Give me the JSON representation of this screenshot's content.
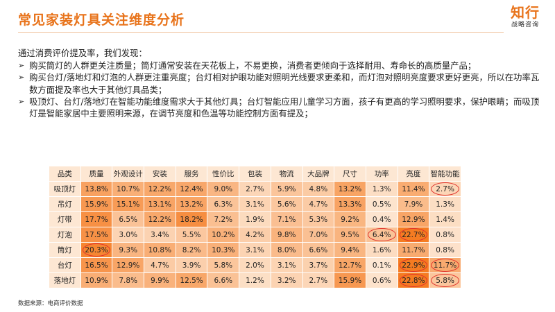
{
  "header": {
    "title": "常见家装灯具关注维度分析",
    "logo_main": "知行",
    "logo_sub": "战略咨询"
  },
  "intro": "通过消费评价提及率，我们发现：",
  "bullets": [
    "购买筒灯的人群更关注质量；筒灯通常安装在天花板上，不易更换，消费者更倾向于选择耐用、寿命长的高质量产品；",
    "购买台灯/落地灯和灯泡的人群更注重亮度；台灯相对护眼功能对照明光线要求更柔和，而灯泡对照明亮度要求更好更亮，所以在功率瓦数方面提及率也大于其他灯具品类；",
    "吸顶灯、台灯/落地灯在智能功能维度需求大于其他灯具；台灯智能应用儿童学习方面，孩子有更高的学习照明要求，保护眼睛；而吸顶灯是智能家居中主要照明来源，在调节亮度和色温等功能控制方面有提及；"
  ],
  "table": {
    "headers": [
      "品类",
      "质量",
      "外观设计",
      "安装",
      "服务",
      "性价比",
      "包装",
      "物流",
      "大品牌",
      "尺寸",
      "功率",
      "亮度",
      "智能功能"
    ],
    "rows": [
      {
        "label": "吸顶灯",
        "cells": [
          "13.8%",
          "10.7%",
          "12.2%",
          "12.4%",
          "9.0%",
          "2.7%",
          "5.9%",
          "4.8%",
          "13.2%",
          "1.3%",
          "11.4%",
          "2.7%"
        ]
      },
      {
        "label": "吊灯",
        "cells": [
          "15.9%",
          "15.1%",
          "13.1%",
          "13.2%",
          "6.3%",
          "3.1%",
          "5.6%",
          "4.7%",
          "13.3%",
          "0.5%",
          "7.9%",
          "1.3%"
        ]
      },
      {
        "label": "灯带",
        "cells": [
          "17.7%",
          "6.5%",
          "12.2%",
          "18.2%",
          "7.2%",
          "1.9%",
          "7.1%",
          "5.3%",
          "9.2%",
          "0.4%",
          "12.9%",
          "1.4%"
        ]
      },
      {
        "label": "灯泡",
        "cells": [
          "17.5%",
          "3.0%",
          "3.4%",
          "5.5%",
          "10.2%",
          "4.2%",
          "9.8%",
          "7.0%",
          "9.5%",
          "6.4%",
          "22.7%",
          "0.8%"
        ]
      },
      {
        "label": "筒灯",
        "cells": [
          "20.3%",
          "9.3%",
          "10.8%",
          "8.2%",
          "10.3%",
          "3.1%",
          "8.0%",
          "6.6%",
          "9.4%",
          "1.6%",
          "11.7%",
          "0.8%"
        ]
      },
      {
        "label": "台灯",
        "cells": [
          "16.5%",
          "12.9%",
          "4.7%",
          "3.9%",
          "5.8%",
          "2.0%",
          "3.1%",
          "3.7%",
          "12.7%",
          "0.1%",
          "22.9%",
          "11.7%"
        ]
      },
      {
        "label": "落地灯",
        "cells": [
          "10.9%",
          "7.8%",
          "9.9%",
          "12.5%",
          "6.6%",
          "1.2%",
          "3.2%",
          "2.7%",
          "15.9%",
          "0.6%",
          "22.8%",
          "5.8%"
        ]
      }
    ],
    "highlighted": [
      [
        0,
        11
      ],
      [
        3,
        9
      ],
      [
        3,
        10
      ],
      [
        4,
        0
      ],
      [
        5,
        10
      ],
      [
        5,
        11
      ],
      [
        6,
        10
      ],
      [
        6,
        11
      ]
    ],
    "heat_colors": [
      "#fde7d3",
      "#f57b21"
    ]
  },
  "source": "数据来源：电商评价数据"
}
